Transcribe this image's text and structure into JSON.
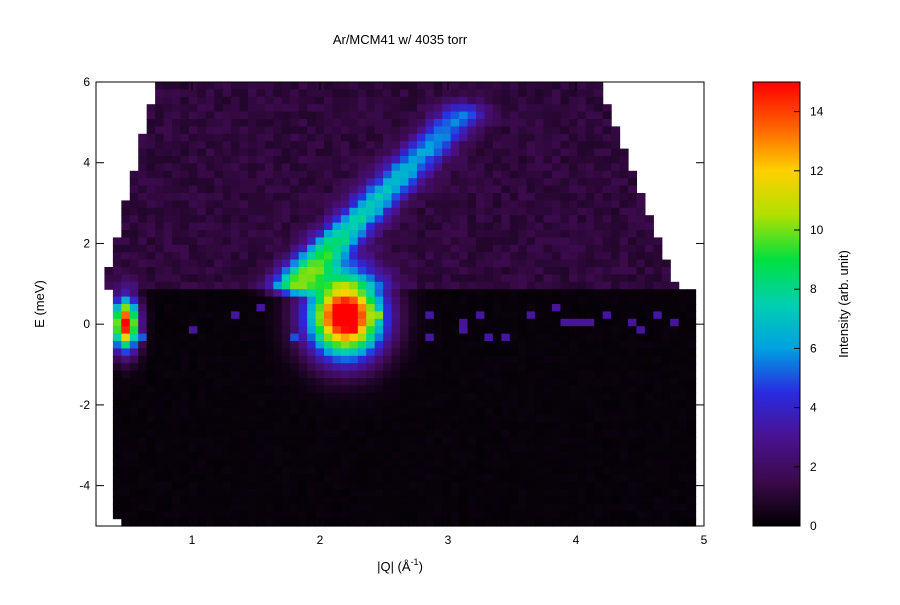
{
  "chart_data": {
    "type": "heatmap",
    "title": "Ar/MCM41 w/ 4035 torr",
    "xlabel": "|Q| (Å",
    "xlabel_superscript": "-1",
    "xlabel_close": ")",
    "ylabel": "E (meV)",
    "colorbar_label": "Intensity (arb. unit)",
    "xlim": [
      0.25,
      5.0
    ],
    "ylim": [
      -5.0,
      6.0
    ],
    "clim": [
      0,
      15
    ],
    "x_ticks": [
      1,
      2,
      3,
      4,
      5
    ],
    "y_ticks": [
      -4,
      -2,
      0,
      2,
      4,
      6
    ],
    "c_ticks": [
      0,
      2,
      4,
      6,
      8,
      10,
      12,
      14
    ],
    "grid": false,
    "colormap": "rainbow (black-purple-blue-cyan-green-yellow-red)",
    "colormap_stops": [
      "#000000",
      "#3a0a4a",
      "#4a1290",
      "#2a2ae0",
      "#00a0e0",
      "#00d0b0",
      "#00e040",
      "#b0e000",
      "#ffd000",
      "#ff6000",
      "#ff0000"
    ],
    "background_level": 1.2,
    "elastic_line_level": 0.2,
    "features": [
      {
        "name": "elastic peak",
        "q": 0.48,
        "e": 0.0,
        "intensity": 15
      },
      {
        "name": "Bragg peak",
        "q": 2.2,
        "e": 0.2,
        "intensity": 15
      },
      {
        "name": "dispersive excitation",
        "q_start": 1.8,
        "e_start": 1.0,
        "q_end": 3.1,
        "e_end": 5.2,
        "intensity": 7
      }
    ]
  }
}
